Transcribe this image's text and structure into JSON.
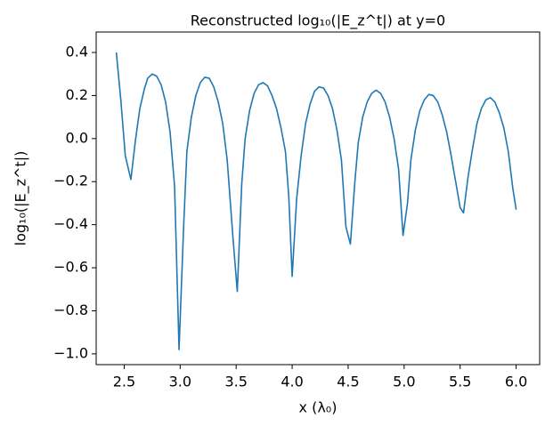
{
  "chart_data": {
    "type": "line",
    "title": "Reconstructed log₁₀(|E_z^t|) at y=0",
    "x_label": "x (λ₀)",
    "y_label": "log₁₀(|E_z^t|)",
    "x": [
      2.43,
      2.47,
      2.51,
      2.56,
      2.6,
      2.64,
      2.68,
      2.71,
      2.75,
      2.79,
      2.83,
      2.87,
      2.91,
      2.95,
      2.99,
      3.03,
      3.06,
      3.1,
      3.14,
      3.18,
      3.22,
      3.26,
      3.3,
      3.34,
      3.38,
      3.42,
      3.47,
      3.51,
      3.55,
      3.58,
      3.62,
      3.66,
      3.7,
      3.74,
      3.78,
      3.82,
      3.86,
      3.9,
      3.94,
      3.97,
      4.0,
      4.04,
      4.08,
      4.12,
      4.16,
      4.2,
      4.24,
      4.28,
      4.32,
      4.36,
      4.4,
      4.44,
      4.48,
      4.52,
      4.56,
      4.59,
      4.63,
      4.67,
      4.71,
      4.75,
      4.79,
      4.83,
      4.87,
      4.91,
      4.95,
      4.99,
      5.03,
      5.06,
      5.1,
      5.14,
      5.18,
      5.22,
      5.26,
      5.3,
      5.34,
      5.38,
      5.42,
      5.46,
      5.5,
      5.53,
      5.57,
      5.61,
      5.65,
      5.69,
      5.73,
      5.77,
      5.81,
      5.85,
      5.89,
      5.93,
      5.97,
      6.0
    ],
    "series": [
      {
        "color": "#1f77b4",
        "values": [
          0.4,
          0.18,
          -0.08,
          -0.19,
          -0.01,
          0.14,
          0.23,
          0.28,
          0.3,
          0.29,
          0.25,
          0.17,
          0.03,
          -0.22,
          -0.98,
          -0.42,
          -0.06,
          0.1,
          0.2,
          0.26,
          0.285,
          0.28,
          0.24,
          0.17,
          0.07,
          -0.1,
          -0.45,
          -0.71,
          -0.21,
          0.0,
          0.13,
          0.21,
          0.25,
          0.26,
          0.245,
          0.2,
          0.14,
          0.05,
          -0.06,
          -0.27,
          -0.64,
          -0.28,
          -0.08,
          0.07,
          0.16,
          0.22,
          0.24,
          0.235,
          0.2,
          0.14,
          0.04,
          -0.1,
          -0.41,
          -0.49,
          -0.2,
          -0.02,
          0.1,
          0.17,
          0.21,
          0.225,
          0.21,
          0.17,
          0.1,
          0.0,
          -0.14,
          -0.45,
          -0.3,
          -0.1,
          0.04,
          0.13,
          0.18,
          0.205,
          0.2,
          0.17,
          0.11,
          0.03,
          -0.08,
          -0.2,
          -0.32,
          -0.345,
          -0.18,
          -0.05,
          0.07,
          0.14,
          0.18,
          0.19,
          0.17,
          0.12,
          0.05,
          -0.06,
          -0.23,
          -0.33
        ]
      }
    ],
    "xlim": [
      2.25,
      6.21
    ],
    "ylim": [
      -1.05,
      0.495
    ],
    "xticks": [
      2.5,
      {
        "value": 3,
        "label": "3.0"
      },
      3.5,
      {
        "value": 4,
        "label": "4.0"
      },
      4.5,
      {
        "value": 5,
        "label": "5.0"
      },
      5.5,
      {
        "value": 6,
        "label": "6.0"
      }
    ],
    "yticks": [
      0.4,
      0.2,
      {
        "value": 0,
        "label": "0.0"
      },
      {
        "value": -0.2,
        "label": "−0.2"
      },
      {
        "value": -0.4,
        "label": "−0.4"
      },
      {
        "value": -0.6,
        "label": "−0.6"
      },
      {
        "value": -0.8,
        "label": "−0.8"
      },
      {
        "value": -1,
        "label": "−1.0"
      }
    ],
    "grid": false
  }
}
